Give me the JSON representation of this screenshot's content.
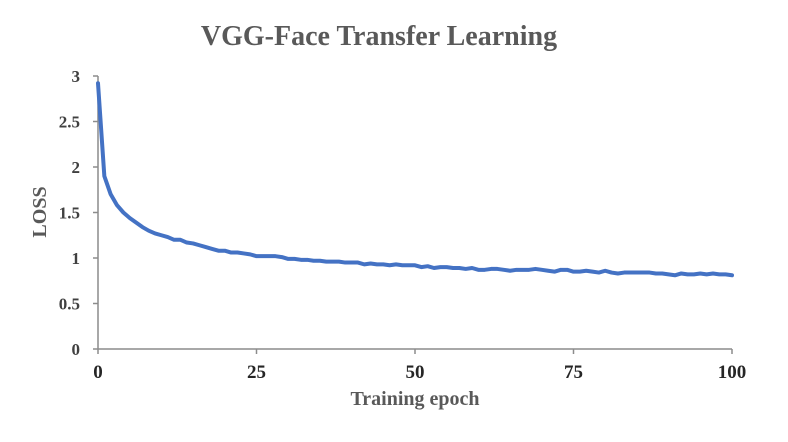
{
  "chart_data": {
    "type": "line",
    "title": "VGG-Face Transfer Learning",
    "xlabel": "Training epoch",
    "ylabel": "LOSS",
    "xlim": [
      0,
      100
    ],
    "ylim": [
      0,
      3
    ],
    "xticks": [
      "0",
      "25",
      "50",
      "75",
      "100"
    ],
    "yticks": [
      "0",
      "0.5",
      "1",
      "1.5",
      "2",
      "2.5",
      "3"
    ],
    "grid": false,
    "legend": "none",
    "color": "#4472C4",
    "series": [
      {
        "x": [
          0,
          1,
          2,
          3,
          4,
          5,
          6,
          7,
          8,
          9,
          10,
          11,
          12,
          13,
          14,
          15,
          16,
          17,
          18,
          19,
          20,
          21,
          22,
          23,
          24,
          25,
          26,
          27,
          28,
          29,
          30,
          31,
          32,
          33,
          34,
          35,
          36,
          37,
          38,
          39,
          40,
          41,
          42,
          43,
          44,
          45,
          46,
          47,
          48,
          49,
          50,
          51,
          52,
          53,
          54,
          55,
          56,
          57,
          58,
          59,
          60,
          61,
          62,
          63,
          64,
          65,
          66,
          67,
          68,
          69,
          70,
          71,
          72,
          73,
          74,
          75,
          76,
          77,
          78,
          79,
          80,
          81,
          82,
          83,
          84,
          85,
          86,
          87,
          88,
          89,
          90,
          91,
          92,
          93,
          94,
          95,
          96,
          97,
          98,
          99,
          100
        ],
        "values": [
          2.92,
          1.9,
          1.7,
          1.58,
          1.5,
          1.44,
          1.39,
          1.34,
          1.3,
          1.27,
          1.25,
          1.23,
          1.2,
          1.2,
          1.17,
          1.16,
          1.14,
          1.12,
          1.1,
          1.08,
          1.08,
          1.06,
          1.06,
          1.05,
          1.04,
          1.02,
          1.02,
          1.02,
          1.02,
          1.01,
          0.99,
          0.99,
          0.98,
          0.98,
          0.97,
          0.97,
          0.96,
          0.96,
          0.96,
          0.95,
          0.95,
          0.95,
          0.93,
          0.94,
          0.93,
          0.93,
          0.92,
          0.93,
          0.92,
          0.92,
          0.92,
          0.9,
          0.91,
          0.89,
          0.9,
          0.9,
          0.89,
          0.89,
          0.88,
          0.89,
          0.87,
          0.87,
          0.88,
          0.88,
          0.87,
          0.86,
          0.87,
          0.87,
          0.87,
          0.88,
          0.87,
          0.86,
          0.85,
          0.87,
          0.87,
          0.85,
          0.85,
          0.86,
          0.85,
          0.84,
          0.86,
          0.84,
          0.83,
          0.84,
          0.84,
          0.84,
          0.84,
          0.84,
          0.83,
          0.83,
          0.82,
          0.81,
          0.83,
          0.82,
          0.82,
          0.83,
          0.82,
          0.83,
          0.82,
          0.82,
          0.81
        ]
      }
    ]
  }
}
